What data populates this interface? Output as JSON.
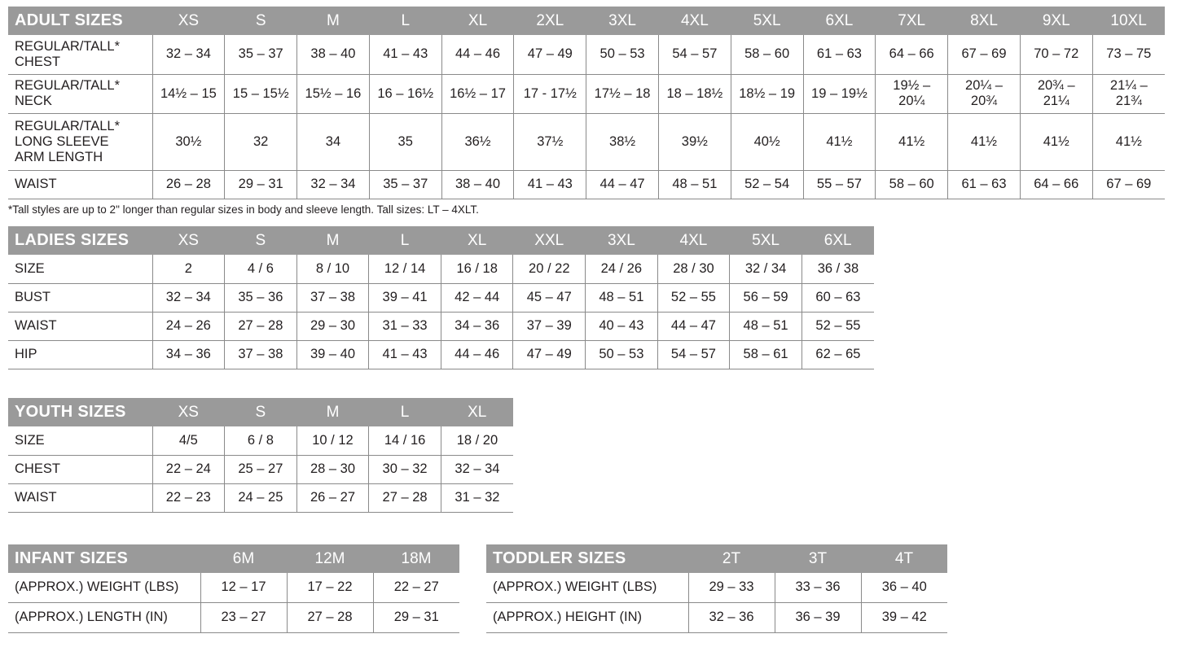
{
  "adult": {
    "title": "ADULT SIZES",
    "sizes": [
      "XS",
      "S",
      "M",
      "L",
      "XL",
      "2XL",
      "3XL",
      "4XL",
      "5XL",
      "6XL",
      "7XL",
      "8XL",
      "9XL",
      "10XL"
    ],
    "rows": [
      {
        "label": "REGULAR/TALL*\nCHEST",
        "values": [
          "32 – 34",
          "35 – 37",
          "38 – 40",
          "41 – 43",
          "44 – 46",
          "47 – 49",
          "50 – 53",
          "54 – 57",
          "58 – 60",
          "61 – 63",
          "64 – 66",
          "67 – 69",
          "70 – 72",
          "73 – 75"
        ]
      },
      {
        "label": "REGULAR/TALL*\nNECK",
        "values": [
          "14½ – 15",
          "15 – 15½",
          "15½ – 16",
          "16 – 16½",
          "16½ – 17",
          "17 - 17½",
          "17½ – 18",
          "18 – 18½",
          "18½ – 19",
          "19 – 19½",
          "19½ –\n20¼",
          "20¼ –\n20¾",
          "20¾ –\n21¼",
          "21¼ –\n21¾"
        ]
      },
      {
        "label": "REGULAR/TALL*\nLONG SLEEVE\nARM LENGTH",
        "values": [
          "30½",
          "32",
          "34",
          "35",
          "36½",
          "37½",
          "38½",
          "39½",
          "40½",
          "41½",
          "41½",
          "41½",
          "41½",
          "41½"
        ]
      },
      {
        "label": "WAIST",
        "values": [
          "26 – 28",
          "29 – 31",
          "32 – 34",
          "35 – 37",
          "38 – 40",
          "41 – 43",
          "44 – 47",
          "48 – 51",
          "52 – 54",
          "55 – 57",
          "58 – 60",
          "61 – 63",
          "64 – 66",
          "67 – 69"
        ]
      }
    ],
    "footnote": "*Tall styles are up to 2\" longer than regular sizes in body and sleeve length. Tall sizes: LT – 4XLT."
  },
  "ladies": {
    "title": "LADIES SIZES",
    "sizes": [
      "XS",
      "S",
      "M",
      "L",
      "XL",
      "XXL",
      "3XL",
      "4XL",
      "5XL",
      "6XL"
    ],
    "rows": [
      {
        "label": "SIZE",
        "values": [
          "2",
          "4 / 6",
          "8 / 10",
          "12 / 14",
          "16 / 18",
          "20 / 22",
          "24 / 26",
          "28 / 30",
          "32 / 34",
          "36 / 38"
        ]
      },
      {
        "label": "BUST",
        "values": [
          "32 – 34",
          "35 – 36",
          "37 – 38",
          "39 – 41",
          "42 – 44",
          "45 – 47",
          "48 – 51",
          "52 – 55",
          "56 – 59",
          "60 – 63"
        ]
      },
      {
        "label": "WAIST",
        "values": [
          "24 – 26",
          "27 – 28",
          "29 – 30",
          "31 – 33",
          "34 – 36",
          "37 – 39",
          "40 – 43",
          "44 – 47",
          "48 – 51",
          "52 – 55"
        ]
      },
      {
        "label": "HIP",
        "values": [
          "34 – 36",
          "37 – 38",
          "39 – 40",
          "41 – 43",
          "44 – 46",
          "47 – 49",
          "50 – 53",
          "54 – 57",
          "58 – 61",
          "62 – 65"
        ]
      }
    ]
  },
  "youth": {
    "title": "YOUTH SIZES",
    "sizes": [
      "XS",
      "S",
      "M",
      "L",
      "XL"
    ],
    "rows": [
      {
        "label": "SIZE",
        "values": [
          "4/5",
          "6 / 8",
          "10 / 12",
          "14 / 16",
          "18 / 20"
        ]
      },
      {
        "label": "CHEST",
        "values": [
          "22 – 24",
          "25 – 27",
          "28 – 30",
          "30 – 32",
          "32 – 34"
        ]
      },
      {
        "label": "WAIST",
        "values": [
          "22 – 23",
          "24 – 25",
          "26 – 27",
          "27 – 28",
          "31 – 32"
        ]
      }
    ]
  },
  "infant": {
    "title": "INFANT SIZES",
    "sizes": [
      "6M",
      "12M",
      "18M"
    ],
    "rows": [
      {
        "label": "(APPROX.) WEIGHT (LBS)",
        "values": [
          "12 – 17",
          "17 – 22",
          "22 – 27"
        ]
      },
      {
        "label": "(APPROX.) LENGTH (IN)",
        "values": [
          "23 – 27",
          "27 – 28",
          "29 – 31"
        ]
      }
    ]
  },
  "toddler": {
    "title": "TODDLER SIZES",
    "sizes": [
      "2T",
      "3T",
      "4T"
    ],
    "rows": [
      {
        "label": "(APPROX.) WEIGHT (LBS)",
        "values": [
          "29 – 33",
          "33 – 36",
          "36 – 40"
        ]
      },
      {
        "label": "(APPROX.) HEIGHT (IN)",
        "values": [
          "32 – 36",
          "36 – 39",
          "39 – 42"
        ]
      }
    ]
  }
}
